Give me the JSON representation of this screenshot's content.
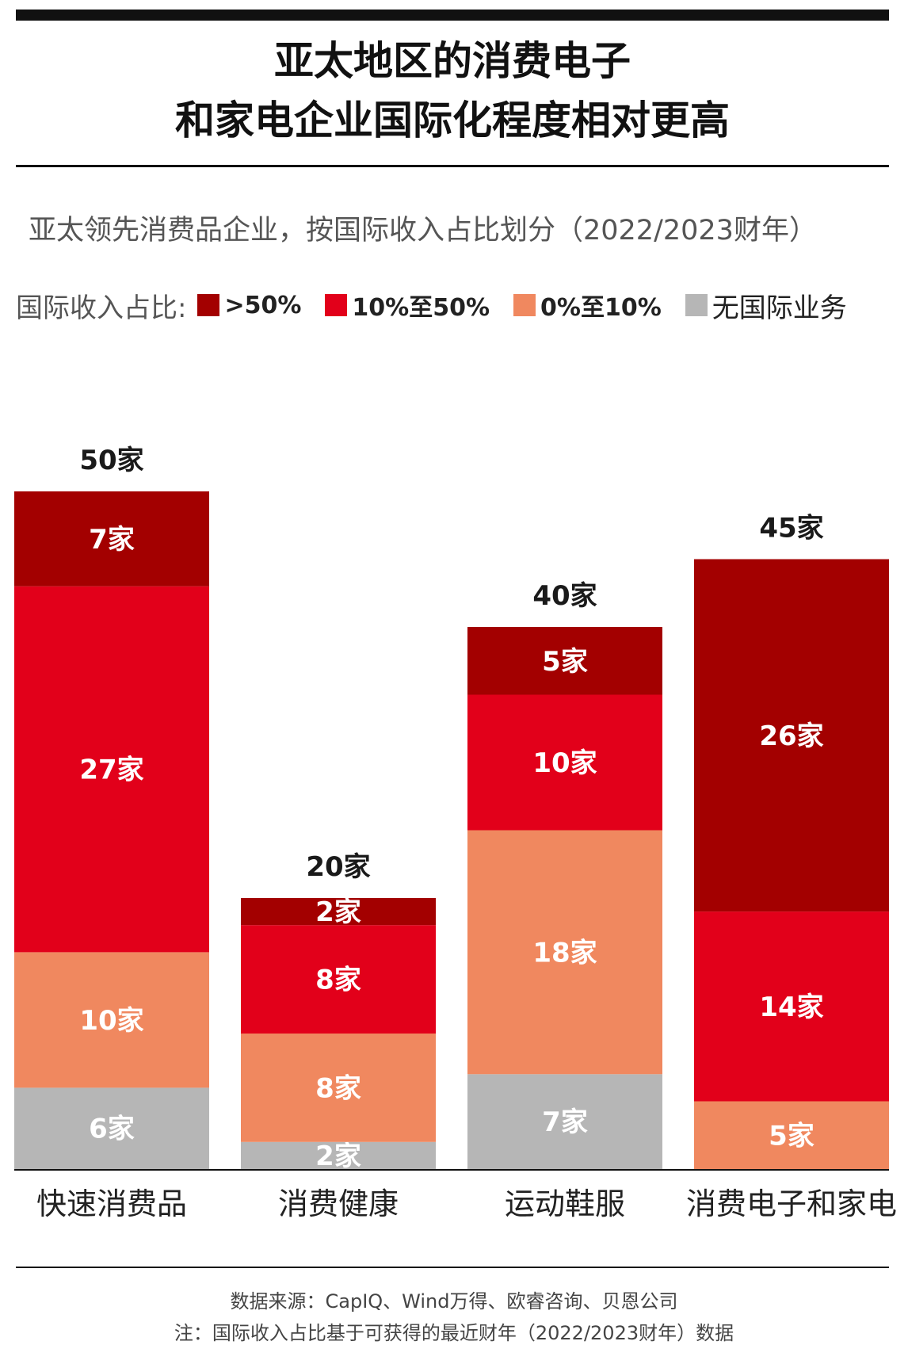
{
  "title_line1": "亚太地区的消费电子",
  "title_line2": "和家电企业国际化程度相对更高",
  "subtitle": "亚太领先消费品企业，按国际收入占比划分（2022/2023财年）",
  "legend_title": "国际收入占比:",
  "colors": {
    "gt50": "#a30000",
    "10to50": "#e2001a",
    "0to10": "#f0885f",
    "none": "#b6b6b6"
  },
  "chart_data": {
    "type": "bar",
    "stacked": true,
    "categories": [
      "快速消费品",
      "消费健康",
      "运动鞋服",
      "消费电子和家电"
    ],
    "totals": [
      50,
      20,
      40,
      45
    ],
    "total_labels": [
      "50家",
      "20家",
      "40家",
      "45家"
    ],
    "unit_suffix": "家",
    "series": [
      {
        "name": "无国际业务",
        "key": "none",
        "values": [
          6,
          2,
          7,
          0
        ]
      },
      {
        "name": "0%至10%",
        "key": "0to10",
        "values": [
          10,
          8,
          18,
          5
        ]
      },
      {
        "name": "10%至50%",
        "key": "10to50",
        "values": [
          27,
          8,
          10,
          14
        ]
      },
      {
        "name": ">50%",
        "key": "gt50",
        "values": [
          7,
          2,
          5,
          26
        ]
      }
    ],
    "ylim": [
      0,
      50
    ]
  },
  "footnote_source": "数据来源：CapIQ、Wind万得、欧睿咨询、贝恩公司",
  "footnote_note": "注：国际收入占比基于可获得的最近财年（2022/2023财年）数据"
}
